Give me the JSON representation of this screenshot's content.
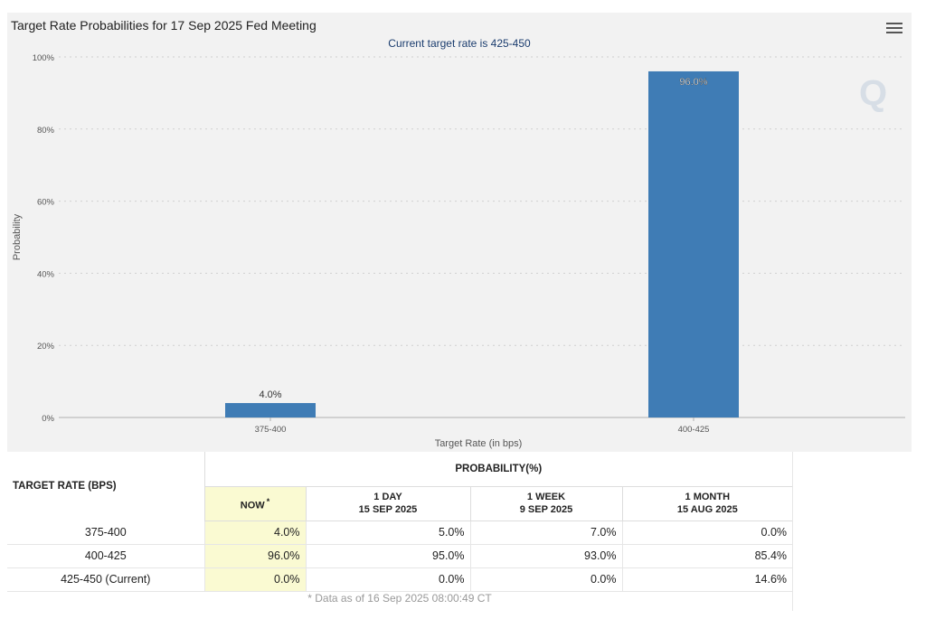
{
  "chart_panel": {
    "title": "Target Rate Probabilities for 17 Sep 2025 Fed Meeting",
    "subtitle": "Current target rate is 425-450",
    "watermark": "Q",
    "menu_icon": "hamburger-menu-icon"
  },
  "chart_data": {
    "type": "bar",
    "title": "Target Rate Probabilities for 17 Sep 2025 Fed Meeting",
    "subtitle": "Current target rate is 425-450",
    "xlabel": "Target Rate (in bps)",
    "ylabel": "Probability",
    "categories": [
      "375-400",
      "400-425"
    ],
    "values": [
      4.0,
      96.0
    ],
    "value_labels": [
      "4.0%",
      "96.0%"
    ],
    "ylim": [
      0,
      100
    ],
    "yticks": [
      0,
      20,
      40,
      60,
      80,
      100
    ],
    "ytick_labels": [
      "0%",
      "20%",
      "40%",
      "60%",
      "80%",
      "100%"
    ],
    "grid": true,
    "bar_color": "#3f7cb5"
  },
  "table": {
    "rate_header": "TARGET RATE (BPS)",
    "prob_header": "PROBABILITY(%)",
    "columns": [
      {
        "line1": "NOW",
        "line2": "",
        "marker": "*"
      },
      {
        "line1": "1 DAY",
        "line2": "15 SEP 2025"
      },
      {
        "line1": "1 WEEK",
        "line2": "9 SEP 2025"
      },
      {
        "line1": "1 MONTH",
        "line2": "15 AUG 2025"
      }
    ],
    "rows": [
      {
        "rate": "375-400",
        "values": [
          "4.0%",
          "5.0%",
          "7.0%",
          "0.0%"
        ]
      },
      {
        "rate": "400-425",
        "values": [
          "96.0%",
          "95.0%",
          "93.0%",
          "85.4%"
        ]
      },
      {
        "rate": "425-450 (Current)",
        "values": [
          "0.0%",
          "0.0%",
          "0.0%",
          "14.6%"
        ]
      }
    ],
    "footnote": "* Data as of 16 Sep 2025 08:00:49 CT"
  },
  "colors": {
    "bar": "#3f7cb5",
    "now_highlight": "#fafad2",
    "panel_bg": "#f2f2f2"
  }
}
